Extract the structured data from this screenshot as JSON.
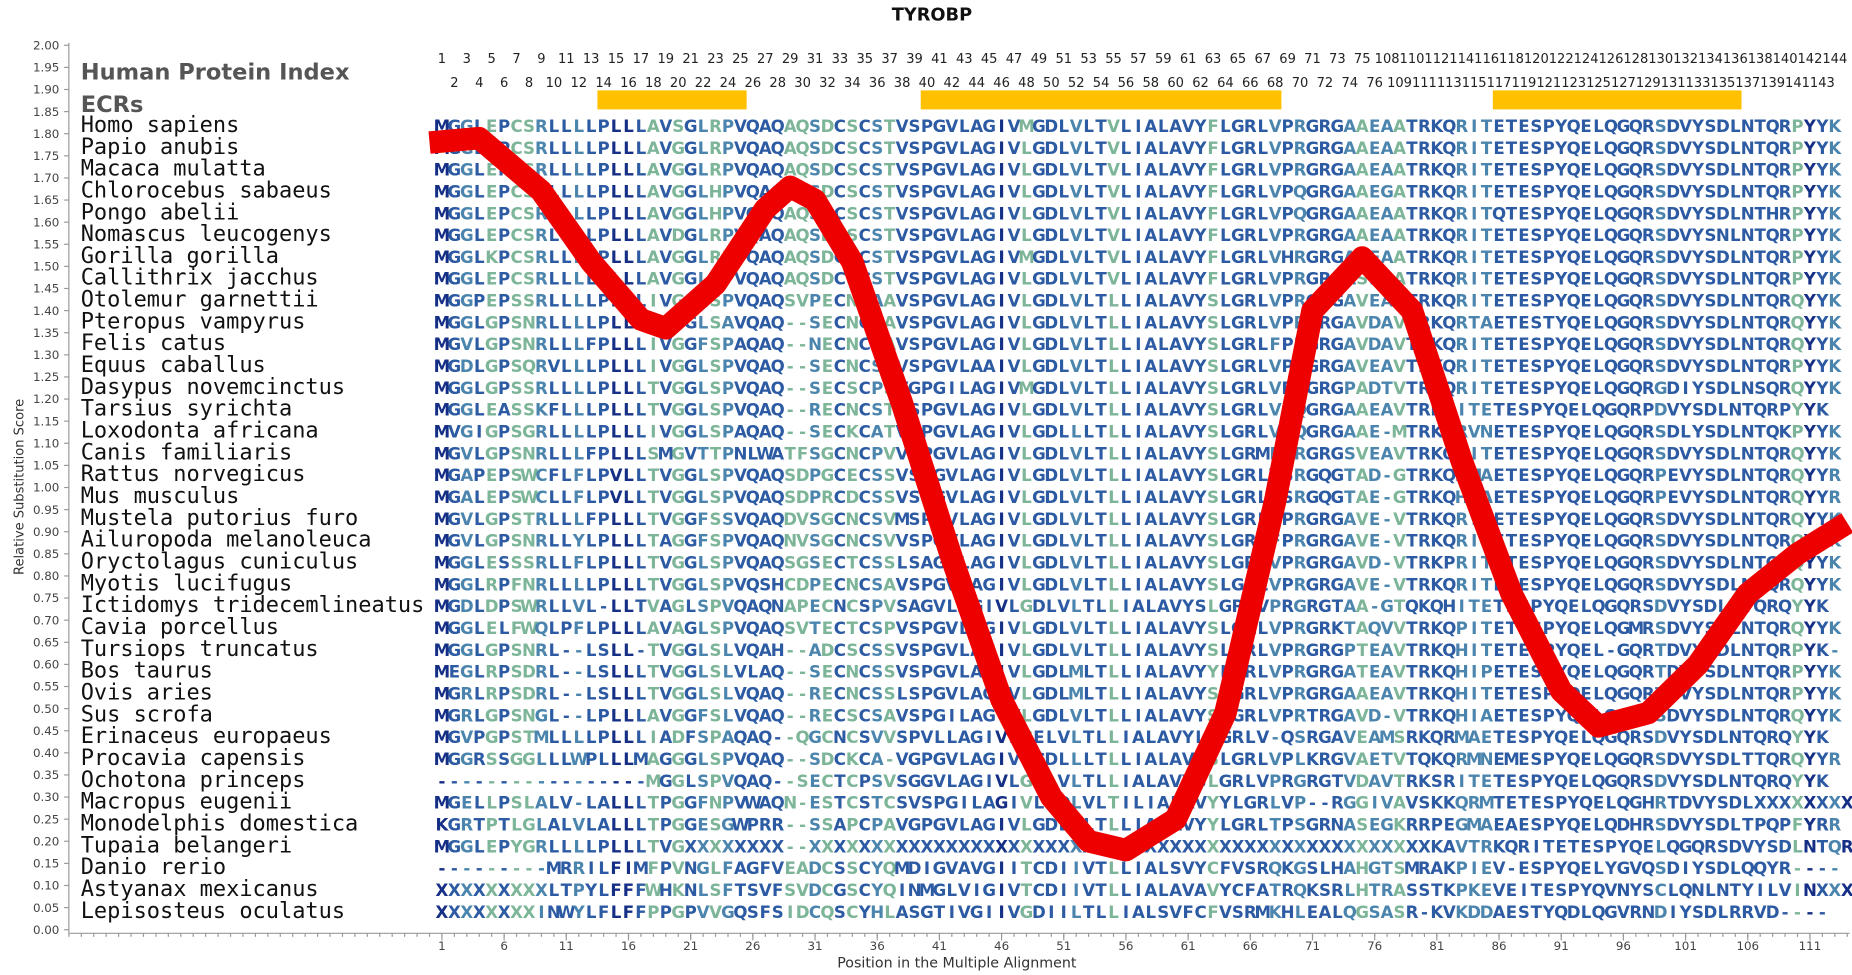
{
  "chart_data": {
    "type": "line",
    "title": "TYROBP",
    "ylabel": "Relative Substitution Score",
    "xlabel": "Position in the Multiple Alignment",
    "index_label": "Human Protein Index",
    "ecr_label": "ECRs",
    "color": "#ee0000",
    "xlim": [
      -29,
      114
    ],
    "ylim": [
      0,
      2
    ],
    "xticks": [
      1,
      6,
      11,
      16,
      21,
      26,
      31,
      36,
      41,
      46,
      51,
      56,
      61,
      66,
      71,
      76,
      81,
      86,
      91,
      96,
      101,
      106,
      111
    ],
    "yticks": [
      {
        "value": 0,
        "label": "0.00"
      },
      0.05,
      {
        "value": 0.1,
        "label": "0.10"
      },
      0.15,
      {
        "value": 0.2,
        "label": "0.20"
      },
      0.25,
      {
        "value": 0.3,
        "label": "0.30"
      },
      0.35,
      {
        "value": 0.4,
        "label": "0.40"
      },
      0.45,
      {
        "value": 0.5,
        "label": "0.50"
      },
      0.55,
      {
        "value": 0.6,
        "label": "0.60"
      },
      0.65,
      {
        "value": 0.7,
        "label": "0.70"
      },
      0.75,
      {
        "value": 0.8,
        "label": "0.80"
      },
      0.85,
      {
        "value": 0.9,
        "label": "0.90"
      },
      0.95,
      {
        "value": 1,
        "label": "1.00"
      },
      1.05,
      {
        "value": 1.1,
        "label": "1.10"
      },
      1.15,
      {
        "value": 1.2,
        "label": "1.20"
      },
      1.25,
      {
        "value": 1.3,
        "label": "1.30"
      },
      1.35,
      {
        "value": 1.4,
        "label": "1.40"
      },
      1.45,
      {
        "value": 1.5,
        "label": "1.50"
      },
      1.55,
      {
        "value": 1.6,
        "label": "1.60"
      },
      1.65,
      {
        "value": 1.7,
        "label": "1.70"
      },
      1.75,
      {
        "value": 1.8,
        "label": "1.80"
      },
      1.85,
      {
        "value": 1.9,
        "label": "1.90"
      },
      1.95,
      {
        "value": 2,
        "label": "2.00"
      }
    ],
    "x": [
      0,
      4,
      9,
      13,
      17,
      19,
      23,
      27,
      29,
      31,
      34,
      38,
      42,
      46,
      50,
      53,
      56,
      60,
      64,
      68,
      71,
      75,
      79,
      83,
      87,
      91,
      94,
      98,
      102,
      106,
      110,
      114
    ],
    "values": [
      1.78,
      1.79,
      1.67,
      1.51,
      1.38,
      1.36,
      1.46,
      1.63,
      1.68,
      1.65,
      1.51,
      1.19,
      0.84,
      0.52,
      0.3,
      0.2,
      0.18,
      0.25,
      0.49,
      0.97,
      1.4,
      1.52,
      1.4,
      1.06,
      0.76,
      0.54,
      0.46,
      0.49,
      0.6,
      0.76,
      0.85,
      0.92
    ],
    "human_index": [
      1,
      2,
      3,
      4,
      5,
      6,
      7,
      8,
      9,
      10,
      11,
      12,
      13,
      14,
      15,
      16,
      17,
      18,
      19,
      20,
      21,
      22,
      23,
      24,
      25,
      26,
      27,
      28,
      29,
      30,
      31,
      32,
      33,
      34,
      35,
      36,
      37,
      38,
      39,
      40,
      41,
      42,
      43,
      44,
      45,
      46,
      47,
      48,
      49,
      50,
      51,
      52,
      53,
      54,
      55,
      56,
      57,
      58,
      59,
      60,
      61,
      62,
      63,
      64,
      65,
      66,
      67,
      68,
      69,
      70,
      71,
      72,
      73,
      74,
      75,
      76,
      108,
      109,
      110,
      111,
      112,
      113,
      114,
      115,
      116,
      117,
      118,
      119,
      120,
      121,
      122,
      123,
      124,
      125,
      126,
      127,
      128,
      129,
      130,
      131,
      132,
      133,
      134,
      135,
      136,
      137,
      138,
      139,
      140,
      141,
      142,
      143,
      144
    ],
    "ecrs": [
      [
        14,
        25
      ],
      [
        40,
        68
      ],
      [
        86,
        105
      ]
    ],
    "alignment": [
      {
        "species": "Homo sapiens",
        "sequence": "MGGLEPCSRLLLLPLLLAVSGLRPVQAQAQSDCSCSTVSPGVLAGIVMGDLVLTVLIALAVYFLGRLVPRGRGAAEAATRKQRITETESPYQELQGQRSDVYSDLNTQRPYYK"
      },
      {
        "species": "Papio anubis",
        "sequence": "MGGLEPCSRLLLLPLLLAVGGLRPVQAQAQSDCSCSTVSPGVLAGIVLGDLVLTVLIALAVYFLGRLVPRGRGAAEAATRKQRITETESPYQELQGQRSDVYSDLNTQRPYYK"
      },
      {
        "species": "Macaca mulatta",
        "sequence": "MGGLEPCSRLLLLPLLLAVGGLRPVQAQAQSDCSCSTVSPGVLAGIVLGDLVLTVLIALAVYFLGRLVPRGRGAAEAATRKQRITETESPYQELQGQRSDVYSDLNTQRPYYK"
      },
      {
        "species": "Chlorocebus sabaeus",
        "sequence": "MGGLEPCSRLLLLPLLLAVGGLHPVQAQAQSDCSCSTVSPGVLAGIVLGDLVLTVLIALAVYFLGRLVPQGRGAAEGATRKQRITETESPYQELQGQRSDVYSDLNTQRPYYK"
      },
      {
        "species": "Pongo abelii",
        "sequence": "MGGLEPCSRLLLLPLLLAVGGLHPVQAQAQSDCSCSTVSPGVLAGIVLGDLVLTVLIALAVYFLGRLVPQGRGAAEAATRKQRITQTESPYQELQGQRSDVYSDLNTHRPYYK"
      },
      {
        "species": "Nomascus leucogenys",
        "sequence": "MGGLEPCSRLLLLPLLLAVDGLRPVQAQAQSDCSCSTVSPGVLAGIVLGDLVLTVLIALAVYFLGRLVPRGRGAAEAATRKQRITETESPYQELQGQRSDVYSNLNTQRPYYK"
      },
      {
        "species": "Gorilla gorilla",
        "sequence": "MGGLKPCSRLLLLPLLLAVGGLRPVQAQAQSDCSCSTVSPGVLAGIVMGDLVLTVLIALAVYFLGRLVHRGRGAAEAATRKQRITETESPYQELQGQRSDVYSDLNTQRPYYK"
      },
      {
        "species": "Callithrix jacchus",
        "sequence": "MGGLEPCSRLLLLPLLLAVGGLCPVQAQAQSDCSCSTVSPGVLAGIVLGDLVLTVLIALAVYFLGRLVPRGRGASEAATRKQRITETESPYQELQGQRSDVYSDLNTQRPYYK"
      },
      {
        "species": "Otolemur garnettii",
        "sequence": "MGGPEPSSRLLLLPLLLIVGGLSPVQAQSVPECNCAAVSPGVLAGIVLGDLVLTLLIALAVYSLGRLVPRGRGAVEAMTRKQRITETESPYQELQGQRSDVYSDLNTQRQYYK"
      },
      {
        "species": "Pteropus vampyrus",
        "sequence": "MGGLGPSNRLLLLPLLLTVGGLSAVQAQ--SECNCSAVSPGVLAGIVLGDLVLTLLIALAVYSLGRLVPRGRGAVDAVTRKQRTAETESTYQELQGQRSDVYSDLNTQRQYYK"
      },
      {
        "species": "Felis catus",
        "sequence": "MGVLGPSNRLLLFPLLLIVGGFSPAQAQ--NECNCSAVSPGVLAGIVLGDLVLTLLIALAVYSLGRLFPRGRGAVDAVTRKQRITETESPYQELQGQRSDVYSDLNTQRQYYK"
      },
      {
        "species": "Equus caballus",
        "sequence": "MGDLGPSQRVLLLPLLLIVGGLSPVQAQ--SECNCSVVSPGVLAAIVLGDLVLTLLIALAVYSLGRLVPKGRGAVEAVTRKQRITETESPYQELQGQRSDVYSDLNTQRPYYK"
      },
      {
        "species": "Dasypus novemcinctus",
        "sequence": "MGGLGPSSRLLLLPLLLTVGGLSPVQAQ--SECSCPSVGPGILAGIVMGDLVLTLLIALAVYSLGRLVPRGRGPADTVTRKQRITETESPYQELQGQRGDIYSDLNSQRQYYK"
      },
      {
        "species": "Tarsius syrichta",
        "sequence": "MGGLEASSKFLLLPLLLTVGGLSPVQAQ--RECNCSTVSPGVLAGIVLGDLVLTLLIALAVYSLGRLVPQGRGAAEAVTRKRITETESPYQELQGQRPDVYSDLNTQRPYYK"
      },
      {
        "species": "Loxodonta africana",
        "sequence": "MVGIGPSGRLLLLPLLLIVGGLSPAQAQ--SECKCATVGPGVLAGIVLGDLLLTLLIALAVYSLGRLVPQGRGAAE-MTRKQRVNETESPYQELQGQRSDLYSDLNTQKPYYK"
      },
      {
        "species": "Canis familiaris",
        "sequence": "MGVLGPSNRLLLFPLLLSMGVTTPNLWATFSGCNCPVVSPGVLAGIVLGDLVLTLLIALAVYSLGRMFPRGRGSVEAVTRKQRITETESPYQELQGQRSDVYSDLNTQRQYYK"
      },
      {
        "species": "Rattus norvegicus",
        "sequence": "MGAPEPSWCFLFLPVLLTVGGLSPVQAQSDPGCECSSVSPGVLAGIVLGDLVLTLLIALAVYSLGRLVSRGQGTAD-GTRKQHMAETESPYQELQGQRPEVYSDLNTQRQYYR"
      },
      {
        "species": "Mus musculus",
        "sequence": "MGALEPSWCLLFLPVLLTVGGLSPVQAQSDPRCDCSSVSPGVLAGIVLGDLVLTLLIALAVYSLGRLVSRGQGTAE-GTRKQHIAETESPYQELQGQRPEVYSDLNTQRQYYR"
      },
      {
        "species": "Mustela putorius furo",
        "sequence": "MGVLGPSTRLLLFPLLLTVGGFSSVQAQDVSGCNCSVMSPGVLAGIVLGDLVLTLLIALAVYSLGRLFPRGRGAVE-VTRKQRITETESPYQELQGQRSDVYSDLNTQRQYYK"
      },
      {
        "species": "Ailuropoda melanoleuca",
        "sequence": "MGVLGPSNRLLYLPLLLTAGGFSPVQAQNVSGCNCSVVSPGVLAGIVLGDLVLTLLIALAVYSLGRLFPRGRGAVE-VTRKQRITETESPYQELQGQRSDVYSDLNTQRQYYK"
      },
      {
        "species": "Oryctolagus cuniculus",
        "sequence": "MGGLESSSRLLFLPLLLTVGGLSPVQAQSGSECTCSSLSAGALAGIVLGDLVLTLLIALAVYSLGRLVPRGRGAVD-VTRKPRITETESPYQELQGQRSDVYSDLNTQRQYYK"
      },
      {
        "species": "Myotis lucifugus",
        "sequence": "MGGLRPFNRLLLLPLLLTVGGLSPVQSHCDPECNCSAVSPGVLAGIVLGDLVLTLLIALAVYSLGRLVPRGRGAVE-VTRKQRITETESPYQELQGQRSDVYSDLNTQRQYYK"
      },
      {
        "species": "Ictidomys tridecemlineatus",
        "sequence": "MGDLDPSWRLLVL-LLTVAGLSPVQAQNAPECNCSPVSAGVLAGIVLGDLVLTLLIALAVYSLGRLVPRGRGTAA-GTQKQHITETESPYQELQGQRSDVYSDLNTQRQYYK"
      },
      {
        "species": "Cavia porcellus",
        "sequence": "MGGLELFWQLPFLPLLLAVAGLSPVQAQSVTECTCSPVSPGVLAGIVLGDLVLTLLIALAVYSLGRLVPRGRKTAQVVTRKQPITETESPYQELQGMRSDVYSDLNTQRQYYK"
      },
      {
        "species": "Tursiops truncatus",
        "sequence": "MGGLGPSNRL--LSLL-TVGGLSLVQAH--ADCSCSSVSPGVLAGIVLGDLVLTLLIALAVYSLGRLVPRGRGPTEAVTRKQHITETESPYQEL-GQRTDVYSDLNTQRPYK-"
      },
      {
        "species": "Bos taurus",
        "sequence": "MEGLRPSDRL--LSLLLTVGGLSLVLAQ--SECNCSSVSPGVLAGIVLGDLMLTLLIALAVYYLGRLVPRGRGATEAVTRKQHIPETESPYQELQGQRTDVYSDLNTQRPYYK"
      },
      {
        "species": "Ovis aries",
        "sequence": "MGRLRPSDRL--LSLLLTVGGLSLVQAQ--RECNCSSLSPGVLAGIVLGDLMLTLLIALAVYSLGRLVPRGRGAAEAVTRKQHITETESPYQELQGQRTDVYSDLNTQRPYYK"
      },
      {
        "species": "Sus scrofa",
        "sequence": "MGRLGPSNGL--LPLLLAVGGFSLVQAQ--RECSCSAVSPGILAGIVLGDLVLTLLIALAVYSLGRLVPRTRGAVD-VTRKQHIAETESPYQELQGQRSDVYSDLNTQRQYYK"
      },
      {
        "species": "Erinaceus europaeus",
        "sequence": "MGVPGPSTMLLLLPLLLIADFSPAQAQ--QGCNCSVVSPVLLAGIVLGELVLTLLIALAVYLLGRLV-QSRGAVEAMSRKQRMAETESPYQELQGQRSDVYSDLNTQRQYYK"
      },
      {
        "species": "Procavia capensis",
        "sequence": "MGGRSSGGLLLWPLLLMAGGGLSPVQAQ--SDCKCA-VGPGVLAGIVLGDLLLTLLIALAVYSLGRLVPLKRGVAETVTQKQRMNEMESPYQELQGQRSDVYSDLTTQRQYYR"
      },
      {
        "species": "Ochotona princeps",
        "sequence": "-----------------MGGLSPVQAQ--SECTCPSVSGGVLAGIVLGDLVLTLLIALAVYSLGRLVPRGRGTVDAVTRKSRITETESPYQELQGQRSDVYSDLNTQRQYYK"
      },
      {
        "species": "Macropus eugenii",
        "sequence": "MGELLPSLALV-LALLLTPGGFNPVWAQN-ESTCSTCSVSPGILAGIVLGDLVLTILIALAVYYLGRLVP--RGGIVAVSKKQRMTETESPYQELQGHRTDVYSDLXXXXXXXX"
      },
      {
        "species": "Monodelphis domestica",
        "sequence": "KGRTPTLGLALVLALLLTPGGESGWPRR--SSAPCPAVGPGVLAGIVLGDLALTLLIALAVYYLGRLTPSGRNASEGKRRPEGMAEAESPYQELQDHRSDVYSDLTPQPFYRR"
      },
      {
        "species": "Tupaia belangeri",
        "sequence": "MGGLEPYGRLLLLPLLLTVGXXXXXXXX--XXXXXXXXXXXXXXXXXXXXXXXXXXXXXXXXXXXXXXXXXXXXXXXXXXKAVTRKQRITETESPYQELQGQRSDVYSDLNTQRPYYK"
      },
      {
        "species": "Danio rerio",
        "sequence": "---------MRRILFIMFPVNGLFAGFVEADCSSCYQMDIGVAVGIITCDIIVTLLIALSVYCFVSRQKGSLHAHGTSMRAKPIEV-ESPYQELYGVQSDIYSDLQQYR----"
      },
      {
        "species": "Astyanax mexicanus",
        "sequence": "XXXXXXXXXLTPYLFFFWHKNLSFTSVFSVDCGSCYQINMGLVIGIVTCDIIVTLLIALAVAVYCFATRQKSRLHTRASSTKPKEVEITESPYQVNYSCLQNLNTYILVINXXXX"
      },
      {
        "species": "Lepisosteus oculatus",
        "sequence": "XXXXXXXXINWYLFLFFPPGPVVGQSFSIDCQSCYHLASGTIVGIIVGDIILTLLIALSVFCFVSRMKHLEALQGSASR-KVKDDAESTYQDLQGVRNDIYSDLRRVD----"
      }
    ]
  }
}
